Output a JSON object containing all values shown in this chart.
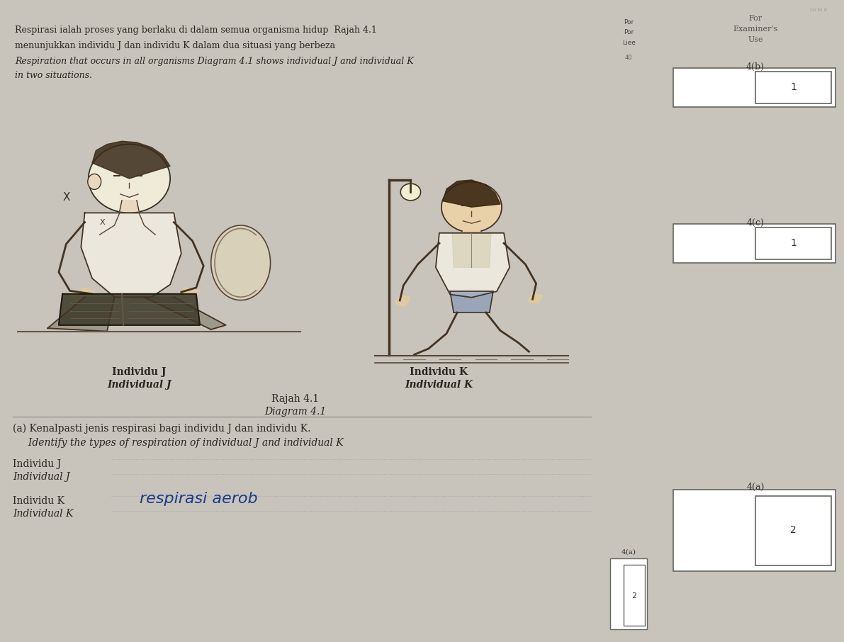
{
  "bg_color": "#c8c4bc",
  "left_page_bg": "#e8e4dc",
  "right_page_bg": "#dde4dc",
  "spine_color": "#6a6560",
  "title_text1": "Respirasi ialah proses yang berlaku di dalam semua organisma hidup  Rajah 4.1",
  "title_text2": "menunjukkan individu J dan individu K dalam dua situasi yang berbeza",
  "title_text3": "Respiration that occurs in all organisms Diagram 4.1 shows individual J and individual K",
  "title_text4": "in two situations.",
  "diagram_title1": "Rajah 4.1",
  "diagram_title2": "Diagram 4.1",
  "label_j_malay": "Individu J",
  "label_j_eng": "Individual J",
  "label_k_malay": "Individu K",
  "label_k_eng": "Individual K",
  "question_a_malay": "(a) Kenalpasti jenis respirasi bagi individu J dan individu K.",
  "question_a_eng": "     Identify the types of respiration of individual J and individual K",
  "individu_j_label_malay": "Individu J",
  "individu_j_label_eng": "Individual J",
  "individu_k_label_malay": "Individu K",
  "individu_k_label_eng": "Individual K",
  "handwritten_text": "respirasi aerob",
  "for_examiner_text1": "For",
  "for_examiner_text2": "Examiner's",
  "for_examiner_text3": "Use",
  "4b_label": "4(b)",
  "4c_label": "4(c)",
  "4a_label": "4(a)",
  "mark1": "1",
  "mark2": "1",
  "mark3": "2",
  "text_color": "#2a2520",
  "line_color": "#888880"
}
